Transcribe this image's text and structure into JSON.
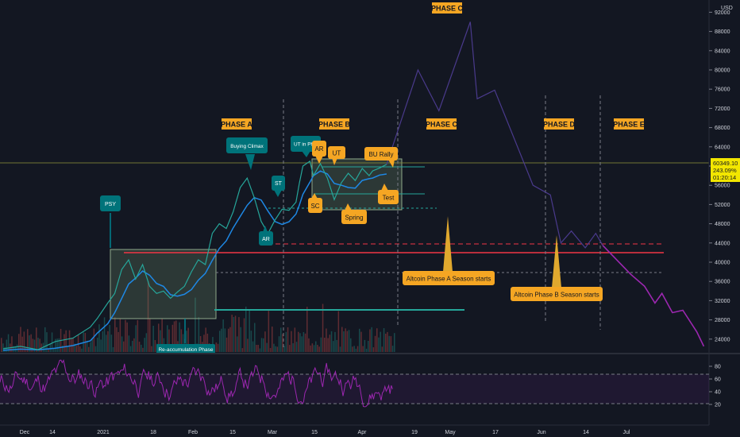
{
  "chart_data": {
    "type": "line",
    "title": "",
    "currency": "USD",
    "price_axis": {
      "ticks": [
        24000,
        28000,
        32000,
        36000,
        40000,
        44000,
        48000,
        52000,
        56000,
        60000,
        64000,
        68000,
        72000,
        76000,
        80000,
        84000,
        88000,
        92000
      ],
      "tick_labels": [
        "24000",
        "28000",
        "32000",
        "36000",
        "40000",
        "44000",
        "48000",
        "52000",
        "56000",
        "60000",
        "64000",
        "68000",
        "72000",
        "76000",
        "80000",
        "84000",
        "88000",
        "92000"
      ],
      "range": [
        21500,
        93500
      ]
    },
    "time_axis": {
      "labels": [
        "Dec",
        "14",
        "2021",
        "18",
        "Feb",
        "15",
        "Mar",
        "15",
        "Apr",
        "19",
        "May",
        "17",
        "Jun",
        "14",
        "Jul"
      ]
    },
    "last_price": {
      "price": "60349.10",
      "change": "243.09%",
      "countdown": "01:20:14",
      "value": 60349.1
    },
    "price_path": [
      [
        0,
        22000
      ],
      [
        5,
        22500
      ],
      [
        10,
        21800
      ],
      [
        15,
        23500
      ],
      [
        20,
        24200
      ],
      [
        25,
        26500
      ],
      [
        27,
        28300
      ],
      [
        30,
        31500
      ],
      [
        32,
        33500
      ],
      [
        34,
        38500
      ],
      [
        36,
        40500
      ],
      [
        38,
        36500
      ],
      [
        40,
        39500
      ],
      [
        42,
        35000
      ],
      [
        44,
        33500
      ],
      [
        46,
        34000
      ],
      [
        48,
        32500
      ],
      [
        50,
        33800
      ],
      [
        52,
        35000
      ],
      [
        54,
        38000
      ],
      [
        56,
        40500
      ],
      [
        58,
        39500
      ],
      [
        60,
        46000
      ],
      [
        62,
        48000
      ],
      [
        64,
        47000
      ],
      [
        66,
        50500
      ],
      [
        68,
        55500
      ],
      [
        70,
        57500
      ],
      [
        72,
        53500
      ],
      [
        74,
        48500
      ],
      [
        76,
        46000
      ],
      [
        78,
        48800
      ],
      [
        80,
        51000
      ],
      [
        82,
        50800
      ],
      [
        84,
        52500
      ],
      [
        85,
        56500
      ],
      [
        86,
        60000
      ],
      [
        88,
        61000
      ],
      [
        89,
        58000
      ],
      [
        91,
        60500
      ],
      [
        93,
        57500
      ],
      [
        95,
        53000
      ],
      [
        97,
        56500
      ],
      [
        99,
        58500
      ],
      [
        101,
        57000
      ],
      [
        103,
        59500
      ],
      [
        105,
        58000
      ],
      [
        106,
        59000
      ],
      [
        108,
        59600
      ],
      [
        110,
        60349
      ]
    ],
    "projection": [
      [
        110,
        60349
      ],
      [
        119,
        80000
      ],
      [
        125,
        71500
      ],
      [
        134,
        90000
      ],
      [
        136,
        74000
      ],
      [
        141,
        75800
      ],
      [
        152,
        56000
      ],
      [
        157,
        54000
      ],
      [
        160,
        44000
      ],
      [
        163,
        46500
      ],
      [
        167,
        43000
      ],
      [
        170,
        46000
      ],
      [
        172,
        43500
      ],
      [
        180,
        37500
      ],
      [
        184,
        35000
      ],
      [
        187,
        31500
      ],
      [
        189,
        33500
      ],
      [
        192,
        29500
      ],
      [
        195,
        30000
      ],
      [
        199,
        25500
      ],
      [
        201,
        22500
      ]
    ],
    "volume": [
      0.9,
      0.6,
      0.8,
      0.5,
      0.7,
      1.0,
      0.6,
      0.8,
      0.9,
      0.5,
      0.7,
      1.0
    ],
    "rsi_axis": {
      "ticks": [
        20,
        40,
        60,
        80
      ],
      "range": [
        6,
        96
      ],
      "bands": [
        30,
        70
      ]
    },
    "phases": [
      "PHASE A",
      "PHASE B",
      "PHASE C",
      "PHASE C",
      "PHASE D",
      "PHASE E"
    ],
    "events": [
      "PSY",
      "Buying Climax",
      "AR",
      "ST",
      "UT in Phase B",
      "AR",
      "UT",
      "BU Rally",
      "SC",
      "Spring",
      "Test",
      "Re-accumulation Phase"
    ],
    "notes": [
      "Altcoin Phase A Season starts",
      "Altcoin Phase B Season starts"
    ],
    "colors": {
      "background": "#131722",
      "phase_label": "#f5a623",
      "event_teal": "#00737a",
      "event_orange": "#f5a623",
      "projection": "#6a3fb5",
      "projection_late": "#9c27b0",
      "support_red": "#f23645",
      "support_teal": "#26a69a",
      "ma_line": "#1e88e5",
      "rsi_line": "#9c27b0"
    }
  }
}
